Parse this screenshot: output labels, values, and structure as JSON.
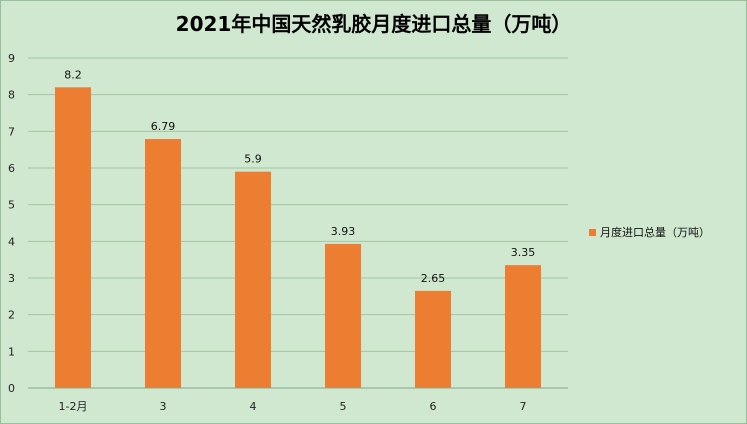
{
  "chart_data": {
    "type": "bar",
    "title": "2021年中国天然乳胶月度进口总量（万吨）",
    "categories": [
      "1-2月",
      "3",
      "4",
      "5",
      "6",
      "7"
    ],
    "series": [
      {
        "name": "月度进口总量（万吨）",
        "values": [
          8.2,
          6.79,
          5.9,
          3.93,
          2.65,
          3.35
        ],
        "color": "#ed7d31"
      }
    ],
    "data_labels": [
      "8.2",
      "6.79",
      "5.9",
      "3.93",
      "2.65",
      "3.35"
    ],
    "y_ticks": [
      "0",
      "1",
      "2",
      "3",
      "4",
      "5",
      "6",
      "7",
      "8",
      "9"
    ],
    "ylim": [
      0,
      9
    ],
    "grid": true,
    "legend_position": "right",
    "background_color": "#cfe8cf",
    "gridline_color": "#a6c4a6"
  }
}
